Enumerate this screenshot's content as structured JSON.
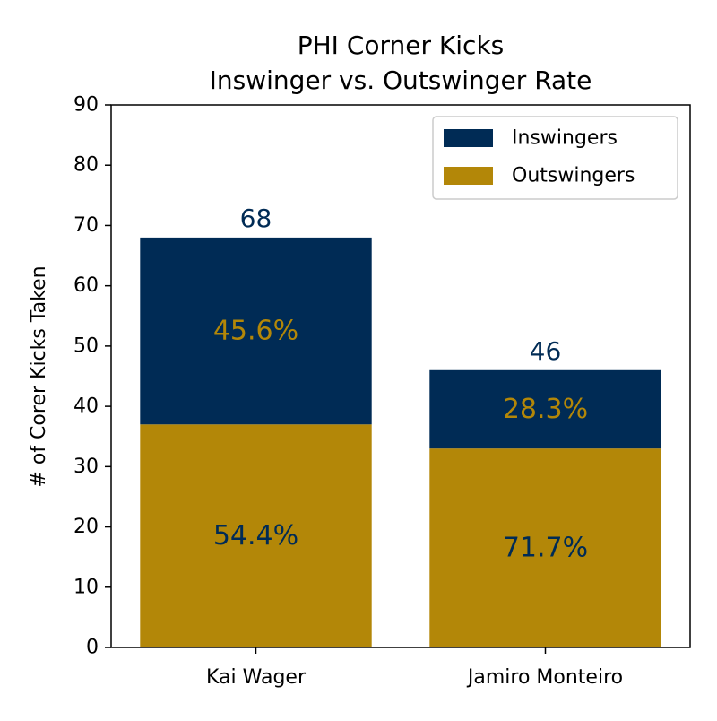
{
  "chart_data": {
    "type": "bar",
    "stacked": true,
    "title": "PHI Corner Kicks",
    "subtitle": "Inswinger vs. Outswinger Rate",
    "xlabel": "",
    "ylabel": "# of Corer Kicks Taken",
    "ylim": [
      0,
      90
    ],
    "yticks": [
      "0",
      "10",
      "20",
      "30",
      "40",
      "50",
      "60",
      "70",
      "80",
      "90"
    ],
    "categories": [
      "Kai Wager",
      "Jamiro Monteiro"
    ],
    "series": [
      {
        "name": "Outswingers",
        "values": [
          37,
          33
        ],
        "color": "#b38708",
        "labels": [
          "54.4%",
          "71.7%"
        ],
        "label_color": "#002b55"
      },
      {
        "name": "Inswingers",
        "values": [
          31,
          13
        ],
        "color": "#002b55",
        "labels": [
          "45.6%",
          "28.3%"
        ],
        "label_color": "#b38708"
      }
    ],
    "totals": [
      "68",
      "46"
    ],
    "total_label_color": "#002b55",
    "legend": {
      "position": "top-right",
      "items": [
        "Inswingers",
        "Outswingers"
      ]
    },
    "grid": false
  }
}
